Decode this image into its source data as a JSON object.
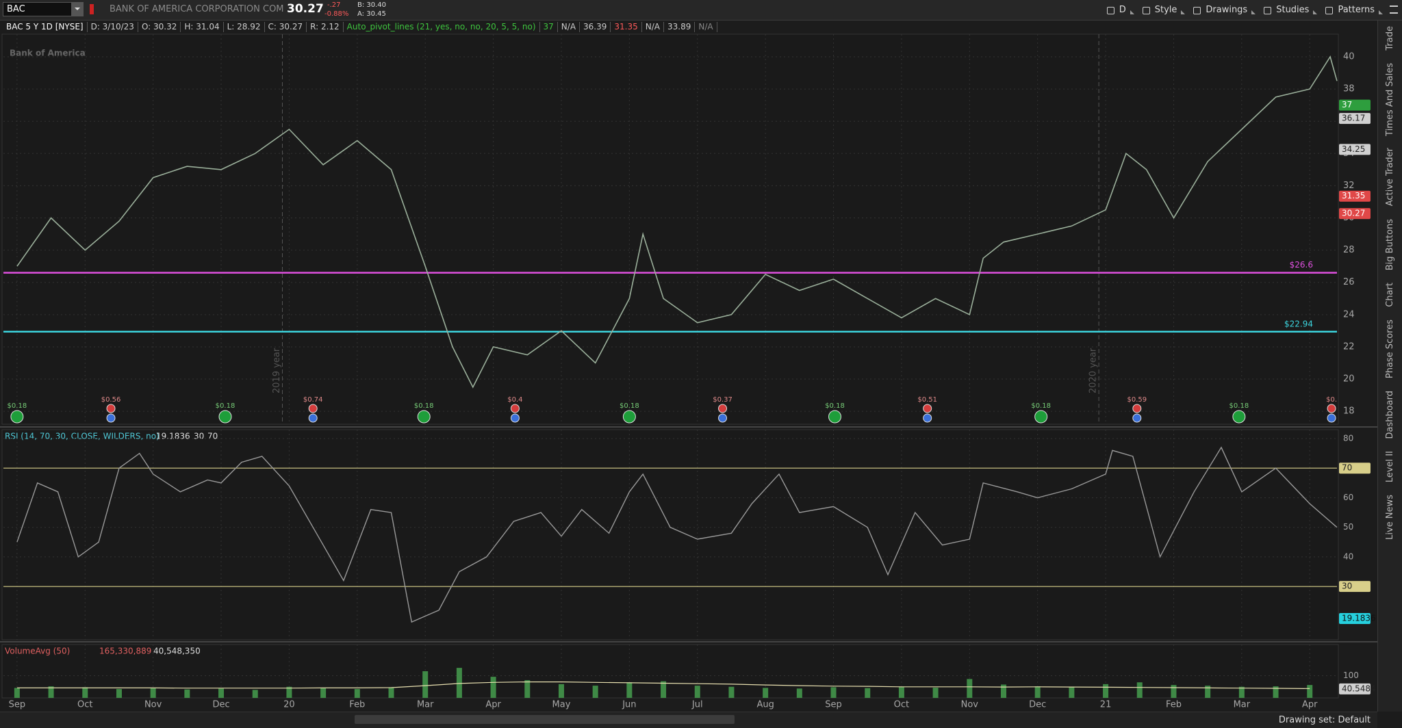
{
  "toolbar": {
    "symbol": "BAC",
    "company": "BANK OF AMERICA CORPORATION COM",
    "last": "30.27",
    "change": "-.27",
    "change_pct": "-0.88%",
    "bid": "B: 30.40",
    "ask": "A: 30.45",
    "buttons": [
      "D",
      "Style",
      "Drawings",
      "Studies",
      "Patterns"
    ]
  },
  "info_bar": {
    "items": [
      {
        "text": "BAC 5 Y 1D [NYSE]",
        "color": "#ffffff"
      },
      {
        "text": "D: 3/10/23",
        "color": "#cccccc"
      },
      {
        "text": "O: 30.32",
        "color": "#cccccc"
      },
      {
        "text": "H: 31.04",
        "color": "#cccccc"
      },
      {
        "text": "L: 28.92",
        "color": "#cccccc"
      },
      {
        "text": "C: 30.27",
        "color": "#cccccc"
      },
      {
        "text": "R: 2.12",
        "color": "#cccccc"
      },
      {
        "text": "Auto_pivot_lines (21, yes, no, no, 20, 5, 5, no)",
        "color": "#3ec43e"
      },
      {
        "text": "37",
        "color": "#3ec43e"
      },
      {
        "text": "N/A",
        "color": "#cccccc"
      },
      {
        "text": "36.39",
        "color": "#cccccc"
      },
      {
        "text": "31.35",
        "color": "#ff5a5a"
      },
      {
        "text": "N/A",
        "color": "#cccccc"
      },
      {
        "text": "33.89",
        "color": "#cccccc"
      },
      {
        "text": "N/A",
        "color": "#888888"
      }
    ]
  },
  "side_tabs": [
    "Trade",
    "Times And Sales",
    "Active Trader",
    "Big Buttons",
    "Chart",
    "Phase Scores",
    "Dashboard",
    "Level II",
    "Live News"
  ],
  "status_bar": {
    "drawing_set": "Drawing set: Default"
  },
  "chart_data": [
    {
      "type": "line",
      "watermark": "Bank of America",
      "color": "#9bb09b",
      "x": [
        0,
        0.5,
        1,
        1.5,
        2,
        2.5,
        3,
        3.5,
        4,
        4.5,
        5,
        5.5,
        6,
        6.4,
        6.7,
        7,
        7.5,
        8,
        8.5,
        9,
        9.2,
        9.5,
        10,
        10.5,
        11,
        11.5,
        12,
        12.5,
        13,
        13.5,
        14,
        14.2,
        14.5,
        15,
        15.5,
        16,
        16.3,
        16.6,
        17,
        17.5,
        18,
        18.5,
        19,
        19.3,
        19.4
      ],
      "values": [
        27,
        30,
        28,
        29.8,
        32.5,
        33.2,
        33,
        34,
        35.5,
        33.3,
        34.8,
        33,
        27,
        22,
        19.5,
        22,
        21.5,
        23,
        21,
        25,
        29,
        25,
        23.5,
        24,
        26.5,
        25.5,
        26.2,
        25,
        23.8,
        25,
        24,
        27.5,
        28.5,
        29,
        29.5,
        30.5,
        34,
        33,
        30,
        33.5,
        35.5,
        37.5,
        38,
        40,
        38.5
      ],
      "xlim": [
        -0.2,
        19.4
      ],
      "ylim": [
        17.2,
        41.4
      ],
      "yticks": [
        18,
        20,
        22,
        24,
        26,
        28,
        30,
        32,
        34,
        36,
        38,
        40
      ],
      "hlines": [
        {
          "value": 26.6,
          "label": "$26.6",
          "color": "#e050e0"
        },
        {
          "value": 22.94,
          "label": "$22.94",
          "color": "#3cd6e0"
        }
      ],
      "tags": [
        {
          "value": 37,
          "color": "#2e9e3e",
          "text_color": "#ffffff"
        },
        {
          "value": 36.17,
          "color": "#d0d0d0",
          "text_color": "#222222"
        },
        {
          "value": 34.25,
          "color": "#d0d0d0",
          "text_color": "#222222"
        },
        {
          "value": 31.35,
          "color": "#e04848",
          "text_color": "#ffffff"
        },
        {
          "value": 30.27,
          "color": "#e04848",
          "text_color": "#ffffff"
        }
      ],
      "year_markers": [
        {
          "x": 3.9,
          "label": "2019 year"
        },
        {
          "x": 15.9,
          "label": "2020 year"
        }
      ],
      "events": [
        {
          "x": 0,
          "label": "$0.18",
          "color": "#1e9e3a"
        },
        {
          "x": 1.38,
          "label": "$0.56",
          "color": "#d43c3c",
          "second_color": "#3a6fd8"
        },
        {
          "x": 3.06,
          "label": "$0.18",
          "color": "#1e9e3a"
        },
        {
          "x": 4.35,
          "label": "$0.74",
          "color": "#d43c3c",
          "second_color": "#3a6fd8"
        },
        {
          "x": 5.98,
          "label": "$0.18",
          "color": "#1e9e3a"
        },
        {
          "x": 7.32,
          "label": "$0.4",
          "color": "#d43c3c",
          "second_color": "#3a6fd8"
        },
        {
          "x": 9.0,
          "label": "$0.18",
          "color": "#1e9e3a"
        },
        {
          "x": 10.37,
          "label": "$0.37",
          "color": "#d43c3c",
          "second_color": "#3a6fd8"
        },
        {
          "x": 12.02,
          "label": "$0.18",
          "color": "#1e9e3a"
        },
        {
          "x": 13.38,
          "label": "$0.51",
          "color": "#d43c3c",
          "second_color": "#3a6fd8"
        },
        {
          "x": 15.05,
          "label": "$0.18",
          "color": "#1e9e3a"
        },
        {
          "x": 16.46,
          "label": "$0.59",
          "color": "#d43c3c",
          "second_color": "#3a6fd8"
        },
        {
          "x": 17.96,
          "label": "$0.18",
          "color": "#1e9e3a"
        },
        {
          "x": 19.32,
          "label": "$0.",
          "color": "#d43c3c",
          "second_color": "#3a6fd8"
        }
      ]
    },
    {
      "type": "line",
      "title": "RSI (14, 70, 30, CLOSE, WILDERS, no)",
      "current": 19.1836,
      "color": "#9a9a9a",
      "level_color": "#d8cf8a",
      "current_color": "#26d0de",
      "x": [
        0,
        0.3,
        0.6,
        0.9,
        1.2,
        1.5,
        1.8,
        2,
        2.4,
        2.8,
        3,
        3.3,
        3.6,
        4,
        4.4,
        4.8,
        5.2,
        5.5,
        5.8,
        6.2,
        6.5,
        6.9,
        7.3,
        7.7,
        8,
        8.3,
        8.7,
        9,
        9.2,
        9.6,
        10,
        10.5,
        10.8,
        11.2,
        11.5,
        12,
        12.5,
        12.8,
        13.2,
        13.6,
        14,
        14.2,
        14.7,
        15,
        15.5,
        16,
        16.1,
        16.4,
        16.8,
        17.3,
        17.7,
        18,
        18.5,
        19,
        19.4
      ],
      "values": [
        45,
        65,
        62,
        40,
        45,
        70,
        75,
        68,
        62,
        66,
        65,
        72,
        74,
        64,
        48,
        32,
        56,
        55,
        18,
        22,
        35,
        40,
        52,
        55,
        47,
        56,
        48,
        62,
        68,
        50,
        46,
        48,
        58,
        68,
        55,
        57,
        50,
        34,
        55,
        44,
        46,
        65,
        62,
        60,
        63,
        68,
        76,
        74,
        40,
        62,
        77,
        62,
        70,
        58,
        50
      ],
      "xlim": [
        -0.2,
        19.4
      ],
      "ylim": [
        12,
        83
      ],
      "yticks": [
        40,
        50,
        60,
        80
      ],
      "levels": [
        30,
        70
      ]
    },
    {
      "type": "bar",
      "title": "VolumeAvg (50)",
      "volume_label": "165,330,889",
      "avg_label": "40,548,350",
      "avg_tag": 40.5484,
      "color": "#3f8a46",
      "avg_color": "#e8e0b0",
      "x": [
        0,
        0.5,
        1,
        1.5,
        2,
        2.5,
        3,
        3.5,
        4,
        4.5,
        5,
        5.5,
        6,
        6.5,
        7,
        7.5,
        8,
        8.5,
        9,
        9.5,
        10,
        10.5,
        11,
        11.5,
        12,
        12.5,
        13,
        13.5,
        14,
        14.5,
        15,
        15.5,
        16,
        16.5,
        17,
        17.5,
        18,
        18.5,
        19
      ],
      "values": [
        45,
        52,
        48,
        40,
        44,
        38,
        42,
        36,
        50,
        44,
        40,
        48,
        120,
        135,
        95,
        80,
        62,
        55,
        70,
        75,
        55,
        50,
        45,
        42,
        48,
        44,
        50,
        46,
        85,
        60,
        52,
        48,
        62,
        70,
        58,
        55,
        50,
        52,
        58
      ],
      "avg_values": [
        45,
        45,
        45,
        45,
        45,
        44,
        44,
        44,
        44,
        45,
        45,
        46,
        55,
        65,
        70,
        72,
        72,
        70,
        68,
        66,
        64,
        62,
        58,
        55,
        53,
        52,
        50,
        50,
        50,
        49,
        50,
        49,
        48,
        47,
        46,
        45,
        44,
        43,
        42
      ],
      "xlim": [
        -0.2,
        19.4
      ],
      "ylim": [
        0,
        240
      ],
      "yticks": [
        100
      ],
      "xticks": [
        {
          "value": 0,
          "label": "Sep"
        },
        {
          "value": 1,
          "label": "Oct"
        },
        {
          "value": 2,
          "label": "Nov"
        },
        {
          "value": 3,
          "label": "Dec"
        },
        {
          "value": 4,
          "label": "20"
        },
        {
          "value": 5,
          "label": "Feb"
        },
        {
          "value": 6,
          "label": "Mar"
        },
        {
          "value": 7,
          "label": "Apr"
        },
        {
          "value": 8,
          "label": "May"
        },
        {
          "value": 9,
          "label": "Jun"
        },
        {
          "value": 10,
          "label": "Jul"
        },
        {
          "value": 11,
          "label": "Aug"
        },
        {
          "value": 12,
          "label": "Sep"
        },
        {
          "value": 13,
          "label": "Oct"
        },
        {
          "value": 14,
          "label": "Nov"
        },
        {
          "value": 15,
          "label": "Dec"
        },
        {
          "value": 16,
          "label": "21"
        },
        {
          "value": 17,
          "label": "Feb"
        },
        {
          "value": 18,
          "label": "Mar"
        },
        {
          "value": 19,
          "label": "Apr"
        }
      ]
    }
  ]
}
